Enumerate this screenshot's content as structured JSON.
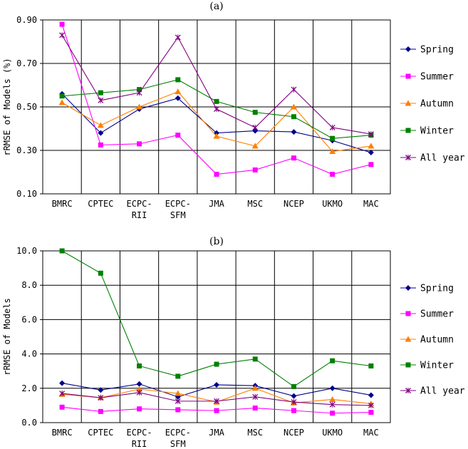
{
  "chart_data": [
    {
      "type": "line",
      "title": "(a)",
      "xlabel": "",
      "ylabel": "rRMSE of Models (%)",
      "ylim": [
        0.1,
        0.9
      ],
      "yticks": [
        "0.10",
        "0.30",
        "0.50",
        "0.70",
        "0.90"
      ],
      "ytick_values": [
        0.1,
        0.3,
        0.5,
        0.7,
        0.9
      ],
      "grid": true,
      "legend_position": "right",
      "categories": [
        [
          "BMRC"
        ],
        [
          "CPTEC"
        ],
        [
          "ECPC-",
          "RII"
        ],
        [
          "ECPC-",
          "SFM"
        ],
        [
          "JMA"
        ],
        [
          "MSC"
        ],
        [
          "NCEP"
        ],
        [
          "UKMO"
        ],
        [
          "MAC"
        ]
      ],
      "series": [
        {
          "name": "Spring",
          "color": "#00008B",
          "marker": "diamond",
          "values": [
            0.56,
            0.38,
            0.49,
            0.54,
            0.38,
            0.39,
            0.385,
            0.345,
            0.29
          ]
        },
        {
          "name": "Summer",
          "color": "#FF00FF",
          "marker": "square",
          "values": [
            0.88,
            0.325,
            0.33,
            0.37,
            0.19,
            0.21,
            0.265,
            0.19,
            0.235
          ]
        },
        {
          "name": "Autumn",
          "color": "#FF7F00",
          "marker": "triangle",
          "values": [
            0.52,
            0.415,
            0.5,
            0.57,
            0.365,
            0.32,
            0.5,
            0.295,
            0.32
          ]
        },
        {
          "name": "Winter",
          "color": "#008000",
          "marker": "square",
          "values": [
            0.55,
            0.565,
            0.58,
            0.625,
            0.525,
            0.475,
            0.455,
            0.355,
            0.37
          ]
        },
        {
          "name": "All year",
          "color": "#800080",
          "marker": "x",
          "values": [
            0.83,
            0.53,
            0.565,
            0.82,
            0.49,
            0.405,
            0.58,
            0.405,
            0.375
          ]
        }
      ]
    },
    {
      "type": "line",
      "title": "(b)",
      "xlabel": "",
      "ylabel": "rRMSE of Models",
      "ylim": [
        0.0,
        10.0
      ],
      "yticks": [
        "0.0",
        "2.0",
        "4.0",
        "6.0",
        "8.0",
        "10.0"
      ],
      "ytick_values": [
        0,
        2,
        4,
        6,
        8,
        10
      ],
      "grid": true,
      "legend_position": "right",
      "categories": [
        [
          "BMRC"
        ],
        [
          "CPTEC"
        ],
        [
          "ECPC-",
          "RII"
        ],
        [
          "ECPC-",
          "SFM"
        ],
        [
          "JMA"
        ],
        [
          "MSC"
        ],
        [
          "NCEP"
        ],
        [
          "UKMO"
        ],
        [
          "MAC"
        ]
      ],
      "series": [
        {
          "name": "Spring",
          "color": "#00008B",
          "marker": "diamond",
          "values": [
            2.3,
            1.9,
            2.25,
            1.5,
            2.2,
            2.15,
            1.55,
            2.0,
            1.6
          ]
        },
        {
          "name": "Summer",
          "color": "#FF00FF",
          "marker": "square",
          "values": [
            0.9,
            0.65,
            0.8,
            0.75,
            0.7,
            0.85,
            0.7,
            0.55,
            0.6
          ]
        },
        {
          "name": "Autumn",
          "color": "#FF7F00",
          "marker": "triangle",
          "values": [
            1.65,
            1.45,
            1.95,
            1.7,
            1.2,
            2.0,
            1.15,
            1.35,
            1.1
          ]
        },
        {
          "name": "Winter",
          "color": "#008000",
          "marker": "square",
          "values": [
            10.0,
            8.7,
            3.3,
            2.7,
            3.4,
            3.7,
            2.1,
            3.6,
            3.3
          ]
        },
        {
          "name": "All year",
          "color": "#800080",
          "marker": "x",
          "values": [
            1.7,
            1.45,
            1.75,
            1.25,
            1.25,
            1.5,
            1.2,
            1.05,
            1.0
          ]
        }
      ]
    }
  ]
}
